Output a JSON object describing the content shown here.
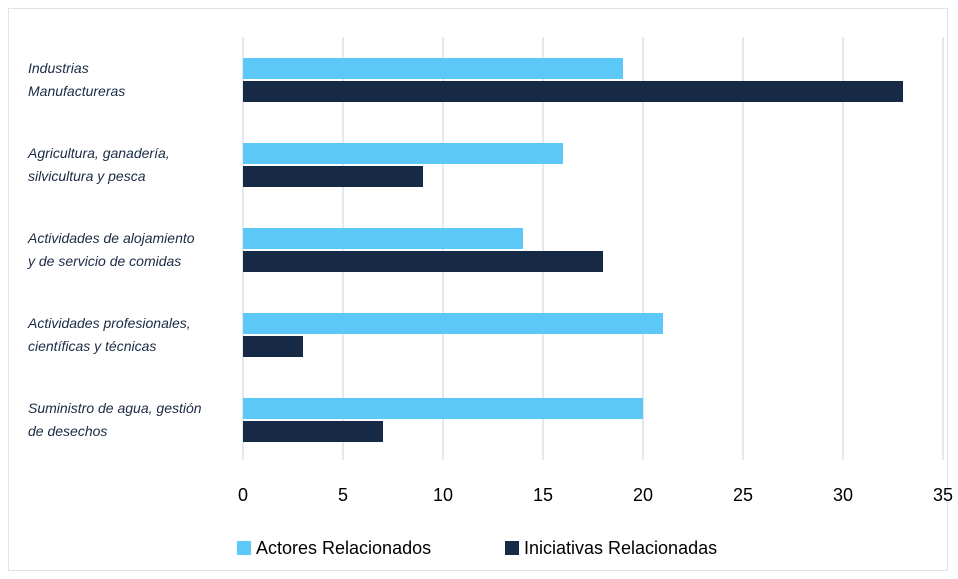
{
  "chart_data": {
    "type": "bar",
    "orientation": "horizontal",
    "categories": [
      [
        "Industrias",
        "Manufactureras"
      ],
      [
        "Agricultura, ganadería,",
        "silvicultura y pesca"
      ],
      [
        "Actividades de alojamiento",
        "y de servicio de comidas"
      ],
      [
        "Actividades profesionales,",
        "científicas y técnicas"
      ],
      [
        "Suministro de agua, gestión",
        "de desechos"
      ]
    ],
    "series": [
      {
        "name": "Actores Relacionados",
        "color": "#5bc8f7",
        "values": [
          19,
          16,
          14,
          21,
          20
        ]
      },
      {
        "name": "Iniciativas Relacionadas",
        "color": "#172a45",
        "values": [
          33,
          9,
          18,
          3,
          7
        ]
      }
    ],
    "xlim": [
      0,
      35
    ],
    "xticks": [
      "0",
      "5",
      "10",
      "15",
      "20",
      "25",
      "30",
      "35"
    ],
    "grid": true,
    "legend_position": "bottom",
    "title": "",
    "xlabel": "",
    "ylabel": ""
  }
}
